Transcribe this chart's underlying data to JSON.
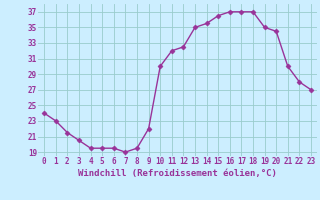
{
  "x": [
    0,
    1,
    2,
    3,
    4,
    5,
    6,
    7,
    8,
    9,
    10,
    11,
    12,
    13,
    14,
    15,
    16,
    17,
    18,
    19,
    20,
    21,
    22,
    23
  ],
  "y": [
    24,
    23,
    21.5,
    20.5,
    19.5,
    19.5,
    19.5,
    19,
    19.5,
    22,
    30,
    32,
    32.5,
    35,
    35.5,
    36.5,
    37,
    37,
    37,
    35,
    34.5,
    30,
    28,
    27
  ],
  "line_color": "#993399",
  "marker": "D",
  "marker_color": "#993399",
  "bg_color": "#cceeff",
  "grid_color": "#99cccc",
  "xlabel": "Windchill (Refroidissement éolien,°C)",
  "ylim": [
    18.5,
    38
  ],
  "xlim": [
    -0.5,
    23.5
  ],
  "yticks": [
    19,
    21,
    23,
    25,
    27,
    29,
    31,
    33,
    35,
    37
  ],
  "xticks": [
    0,
    1,
    2,
    3,
    4,
    5,
    6,
    7,
    8,
    9,
    10,
    11,
    12,
    13,
    14,
    15,
    16,
    17,
    18,
    19,
    20,
    21,
    22,
    23
  ],
  "tick_color": "#993399",
  "xlabel_color": "#993399",
  "xlabel_fontsize": 6.5,
  "tick_fontsize": 5.5,
  "line_width": 1.0,
  "marker_size": 2.5
}
